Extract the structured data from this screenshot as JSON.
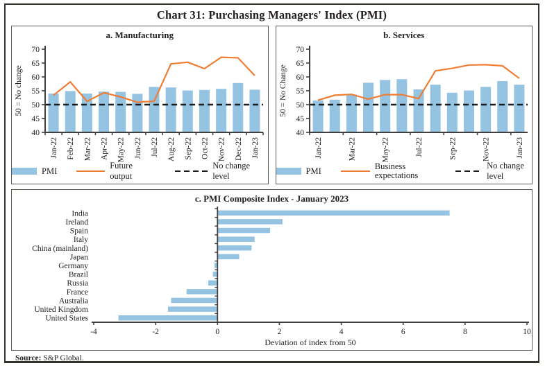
{
  "title": "Chart 31: Purchasing Managers' Index (PMI)",
  "footer": {
    "source_label": "Source:",
    "source_text": "S&P Global."
  },
  "colors": {
    "bar": "#95c3e2",
    "line": "#ef7d33",
    "dash": "#1b1b1b",
    "axis": "#3f3f3f",
    "text": "#242021"
  },
  "chart_data": [
    {
      "id": "manufacturing",
      "type": "bar+line",
      "title": "a. Manufacturing",
      "ylabel": "50 = No change",
      "ylim": [
        40,
        70
      ],
      "yticks": [
        40,
        45,
        50,
        55,
        60,
        65,
        70
      ],
      "xtick_every": 1,
      "legend_position": "bottom",
      "categories": [
        "Jan-22",
        "Feb-22",
        "Mar-22",
        "Apr-22",
        "May-22",
        "Jun-22",
        "Jul-22",
        "Aug-22",
        "Sep-22",
        "Oct-22",
        "Nov-22",
        "Dec-22",
        "Jan-23"
      ],
      "series": [
        {
          "name": "PMI",
          "type": "bar",
          "values": [
            54.0,
            54.9,
            54.0,
            54.7,
            54.6,
            53.9,
            56.4,
            56.2,
            55.1,
            55.3,
            55.7,
            57.8,
            55.4
          ]
        },
        {
          "name": "Future output",
          "type": "line",
          "values": [
            53.4,
            58.2,
            51.2,
            54.3,
            52.8,
            50.9,
            51.2,
            64.7,
            65.3,
            63.0,
            67.1,
            66.9,
            60.5
          ]
        },
        {
          "name": "No change level",
          "type": "level",
          "value": 50
        }
      ]
    },
    {
      "id": "services",
      "type": "bar+line",
      "title": "b. Services",
      "ylabel": "50 = No Change",
      "ylim": [
        40,
        70
      ],
      "yticks": [
        40,
        45,
        50,
        55,
        60,
        65,
        70
      ],
      "xtick_every": 2,
      "legend_position": "bottom",
      "categories": [
        "Jan-22",
        "Feb-22",
        "Mar-22",
        "Apr-22",
        "May-22",
        "Jun-22",
        "Jul-22",
        "Aug-22",
        "Sep-22",
        "Oct-22",
        "Nov-22",
        "Dec-22",
        "Jan-23"
      ],
      "series": [
        {
          "name": "PMI",
          "type": "bar",
          "values": [
            51.5,
            51.8,
            53.6,
            57.9,
            58.9,
            59.2,
            55.5,
            57.2,
            54.3,
            55.1,
            56.4,
            58.5,
            57.2
          ]
        },
        {
          "name": "Business expectations",
          "type": "line",
          "values": [
            51.6,
            53.4,
            53.7,
            52.0,
            53.6,
            53.6,
            52.2,
            62.2,
            63.1,
            64.3,
            64.4,
            64.0,
            59.5
          ]
        },
        {
          "name": "No change level",
          "type": "level",
          "value": 50
        }
      ]
    },
    {
      "id": "composite",
      "type": "barh",
      "title": "c. PMI Composite Index - January 2023",
      "xlabel": "Deviation of index from 50",
      "xlim": [
        -4,
        10
      ],
      "xticks": [
        -4,
        -2,
        0,
        2,
        4,
        6,
        8,
        10
      ],
      "categories": [
        "India",
        "Ireland",
        "Spain",
        "Italy",
        "China (mainland)",
        "Japan",
        "Germany",
        "Brazil",
        "Russia",
        "France",
        "Australia",
        "United Kingdom",
        "United States"
      ],
      "values": [
        7.5,
        2.1,
        1.7,
        1.2,
        1.1,
        0.7,
        -0.1,
        -0.15,
        -0.3,
        -1.0,
        -1.5,
        -1.6,
        -3.2
      ]
    }
  ]
}
